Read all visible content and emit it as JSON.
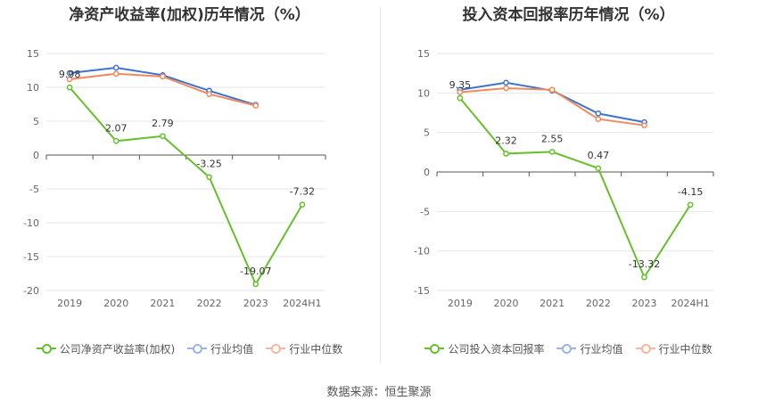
{
  "colors": {
    "company": "#66c02c",
    "industry_avg": "#3b73cf",
    "industry_median": "#f08a5d",
    "industry_avg_legend": "#9db5e6",
    "industry_median_legend": "#f5b89c"
  },
  "source_text": "数据来源：恒生聚源",
  "chart_data": [
    {
      "type": "line",
      "title": "净资产收益率(加权)历年情况（%）",
      "categories": [
        "2019",
        "2020",
        "2021",
        "2022",
        "2023",
        "2024H1"
      ],
      "ylim": [
        -20,
        15
      ],
      "yticks": [
        15,
        10,
        5,
        0,
        -5,
        -10,
        -15,
        -20
      ],
      "series": [
        {
          "name": "公司净资产收益率(加权)",
          "key": "company",
          "values": [
            9.98,
            2.07,
            2.79,
            -3.25,
            -19.07,
            -7.32
          ],
          "labels": [
            "9.98",
            "2.07",
            "2.79",
            "-3.25",
            "-19.07",
            "-7.32"
          ]
        },
        {
          "name": "行业均值",
          "key": "industry_avg",
          "values": [
            12.1,
            12.9,
            11.8,
            9.5,
            7.4,
            null
          ]
        },
        {
          "name": "行业中位数",
          "key": "industry_median",
          "values": [
            11.2,
            12.0,
            11.6,
            9.0,
            7.3,
            null
          ]
        }
      ]
    },
    {
      "type": "line",
      "title": "投入资本回报率历年情况（%）",
      "categories": [
        "2019",
        "2020",
        "2021",
        "2022",
        "2023",
        "2024H1"
      ],
      "ylim": [
        -15,
        15
      ],
      "yticks": [
        15,
        10,
        5,
        0,
        -5,
        -10,
        -15
      ],
      "series": [
        {
          "name": "公司投入资本回报率",
          "key": "company",
          "values": [
            9.35,
            2.32,
            2.55,
            0.47,
            -13.32,
            -4.15
          ],
          "labels": [
            "9.35",
            "2.32",
            "2.55",
            "0.47",
            "-13.32",
            "-4.15"
          ]
        },
        {
          "name": "行业均值",
          "key": "industry_avg",
          "values": [
            10.4,
            11.3,
            10.3,
            7.4,
            6.3,
            null
          ]
        },
        {
          "name": "行业中位数",
          "key": "industry_median",
          "values": [
            10.1,
            10.6,
            10.4,
            6.7,
            5.9,
            null
          ]
        }
      ]
    }
  ]
}
